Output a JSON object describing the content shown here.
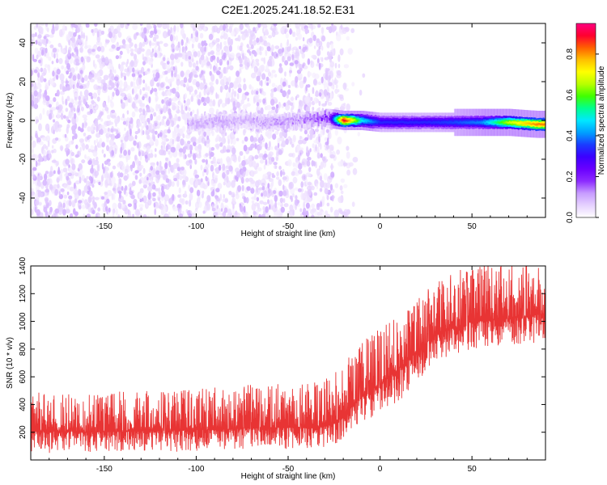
{
  "title": "C2E1.2025.241.18.52.E31",
  "colors": {
    "snr_line": "#e83434",
    "colormap": [
      "#ffffff",
      "#e6d2ff",
      "#c79cff",
      "#8c2bff",
      "#6a00ff",
      "#3c00ff",
      "#1a3cff",
      "#00a0ff",
      "#00e8ff",
      "#00ff90",
      "#40ff00",
      "#b8ff00",
      "#ffff00",
      "#ffc000",
      "#ff6000",
      "#ff0030",
      "#ff0080"
    ]
  },
  "chart_data": [
    {
      "type": "heatmap",
      "name": "spectrogram",
      "xlabel": "Height of straight line (km)",
      "ylabel": "Frequency (Hz)",
      "xlim": [
        -190,
        90
      ],
      "ylim": [
        -50,
        50
      ],
      "xticks": [
        -150,
        -100,
        -50,
        0,
        50
      ],
      "yticks": [
        -40,
        -20,
        0,
        20,
        40
      ],
      "grid": false,
      "signal_track": {
        "description_points_x": [
          -105,
          -90,
          -75,
          -60,
          -45,
          -35,
          -28,
          -20,
          -10,
          0,
          10,
          25,
          40,
          55,
          70,
          85,
          90
        ],
        "description_points_freq": [
          -2,
          -1,
          0,
          -1,
          0,
          1,
          1,
          0,
          0,
          -1,
          -1,
          -1,
          -1,
          -1,
          -1,
          -2,
          -2
        ],
        "description_points_amplitude": [
          0.08,
          0.08,
          0.08,
          0.09,
          0.1,
          0.12,
          0.18,
          0.95,
          0.5,
          0.35,
          0.35,
          0.35,
          0.38,
          0.42,
          0.7,
          0.85,
          0.85
        ]
      },
      "noise_region_xlim": [
        -190,
        -25
      ],
      "colorbar": {
        "label": "Normalized spectral amplitude",
        "range": [
          0,
          0.95
        ],
        "ticks": [
          0.0,
          0.2,
          0.4,
          0.6,
          0.8
        ],
        "tick_labels": [
          "0.0",
          "0.2",
          "0.4",
          "0.6",
          "0.8"
        ]
      }
    },
    {
      "type": "line",
      "name": "snr",
      "xlabel": "Height of straight line (km)",
      "ylabel": "SNR (10 * v/v)",
      "xlim": [
        -190,
        90
      ],
      "ylim": [
        0,
        1400
      ],
      "xticks": [
        -150,
        -100,
        -50,
        0,
        50
      ],
      "yticks": [
        200,
        400,
        600,
        800,
        1000,
        1200,
        1400
      ],
      "grid": false,
      "series": [
        {
          "name": "SNR",
          "x": [
            -190,
            -175,
            -150,
            -125,
            -100,
            -75,
            -50,
            -30,
            -25,
            -20,
            -10,
            0,
            10,
            20,
            30,
            40,
            50,
            60,
            70,
            80,
            90
          ],
          "y": [
            210,
            205,
            200,
            210,
            215,
            225,
            235,
            240,
            260,
            330,
            450,
            550,
            650,
            780,
            900,
            950,
            1000,
            1010,
            1020,
            1030,
            1060
          ],
          "band_min": [
            50,
            50,
            60,
            60,
            60,
            70,
            80,
            90,
            100,
            150,
            250,
            350,
            420,
            550,
            700,
            760,
            800,
            820,
            830,
            840,
            850
          ],
          "band_max": [
            500,
            480,
            490,
            500,
            520,
            540,
            560,
            580,
            620,
            700,
            850,
            950,
            1050,
            1150,
            1300,
            1350,
            1420,
            1420,
            1420,
            1420,
            1420
          ]
        }
      ]
    }
  ]
}
